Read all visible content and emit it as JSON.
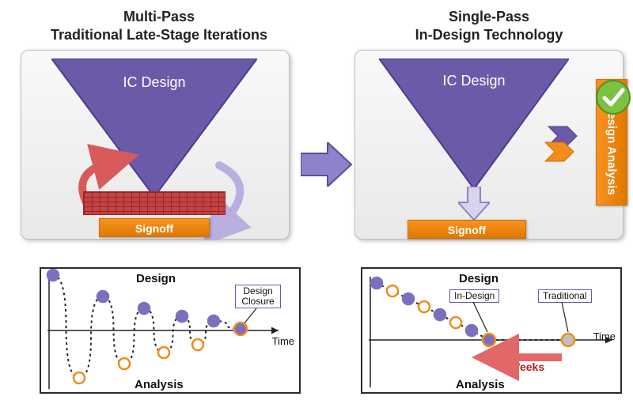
{
  "colors": {
    "purple": "#6a5aa8",
    "purple_stroke": "#4e3d8c",
    "orange": "#f28c1a",
    "orange_dark": "#d46e00",
    "red_arrow": "#d85a5a",
    "lilac_arrow": "#b8aee0",
    "axis": "#222222",
    "dot_purple": "#7d6fc0",
    "dot_orange": "#f28c1a",
    "green": "#7cc242",
    "green_dark": "#4d8f1f"
  },
  "left": {
    "title_l1": "Multi-Pass",
    "title_l2": "Traditional Late-Stage Iterations",
    "triangle_label": "IC Design",
    "signoff": "Signoff",
    "graph": {
      "design": "Design",
      "analysis": "Analysis",
      "time": "Time",
      "closure_l1": "Design",
      "closure_l2": "Closure",
      "wave": {
        "points_top": [
          [
            15,
            8
          ],
          [
            78,
            35
          ],
          [
            130,
            50
          ],
          [
            178,
            60
          ],
          [
            218,
            66
          ]
        ],
        "points_bottom": [
          [
            48,
            138
          ],
          [
            105,
            120
          ],
          [
            155,
            106
          ],
          [
            198,
            96
          ]
        ],
        "closure_pt": [
          252,
          76
        ]
      }
    }
  },
  "right": {
    "title_l1": "Single-Pass",
    "title_l2": "In-Design Technology",
    "triangle_label": "IC Design",
    "indesign_l1": "In-Design",
    "indesign_l2": "Analysis",
    "signoff": "Signoff",
    "graph": {
      "design": "Design",
      "analysis": "Analysis",
      "time": "Time",
      "tag_indesign": "In-Design",
      "tag_traditional": "Traditional",
      "weeks": "Weeks",
      "line": {
        "p_dots": [
          [
            18,
            18
          ],
          [
            58,
            38
          ],
          [
            98,
            58
          ],
          [
            138,
            78
          ]
        ],
        "o_dots": [
          [
            38,
            28
          ],
          [
            78,
            48
          ],
          [
            118,
            68
          ]
        ],
        "in_pt": [
          160,
          90
        ],
        "trad_pt": [
          260,
          90
        ]
      }
    }
  }
}
